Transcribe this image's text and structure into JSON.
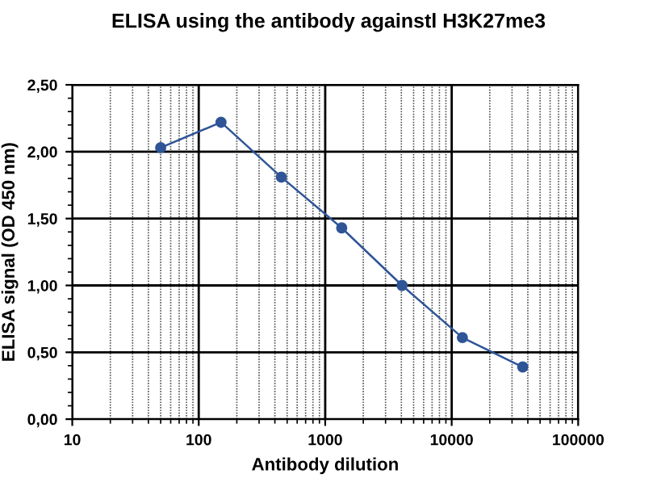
{
  "chart_data": {
    "type": "line",
    "title": "ELISA using the antibody againstl H3K27me3",
    "xlabel": "Antibody dilution",
    "ylabel": "ELISA signal (OD 450 nm)",
    "x": [
      50,
      150,
      450,
      1350,
      4050,
      12150,
      36450
    ],
    "series": [
      {
        "color": "#2f5597",
        "values": [
          2.03,
          2.22,
          1.81,
          1.43,
          1.0,
          0.61,
          0.39
        ]
      }
    ],
    "log": "x",
    "marker": "circle",
    "line_style": "solid",
    "grid": true,
    "legend": false,
    "xlim": [
      10,
      100000
    ],
    "xticks": [
      10,
      100,
      1000,
      10000,
      100000
    ],
    "ylim": [
      0,
      2.5
    ],
    "yticks": [
      {
        "value": 0,
        "label": "0,00"
      },
      {
        "value": 0.5,
        "label": "0,50"
      },
      {
        "value": 1.0,
        "label": "1,00"
      },
      {
        "value": 1.5,
        "label": "1,50"
      },
      {
        "value": 2.0,
        "label": "2,00"
      },
      {
        "value": 2.5,
        "label": "2,50"
      }
    ]
  }
}
